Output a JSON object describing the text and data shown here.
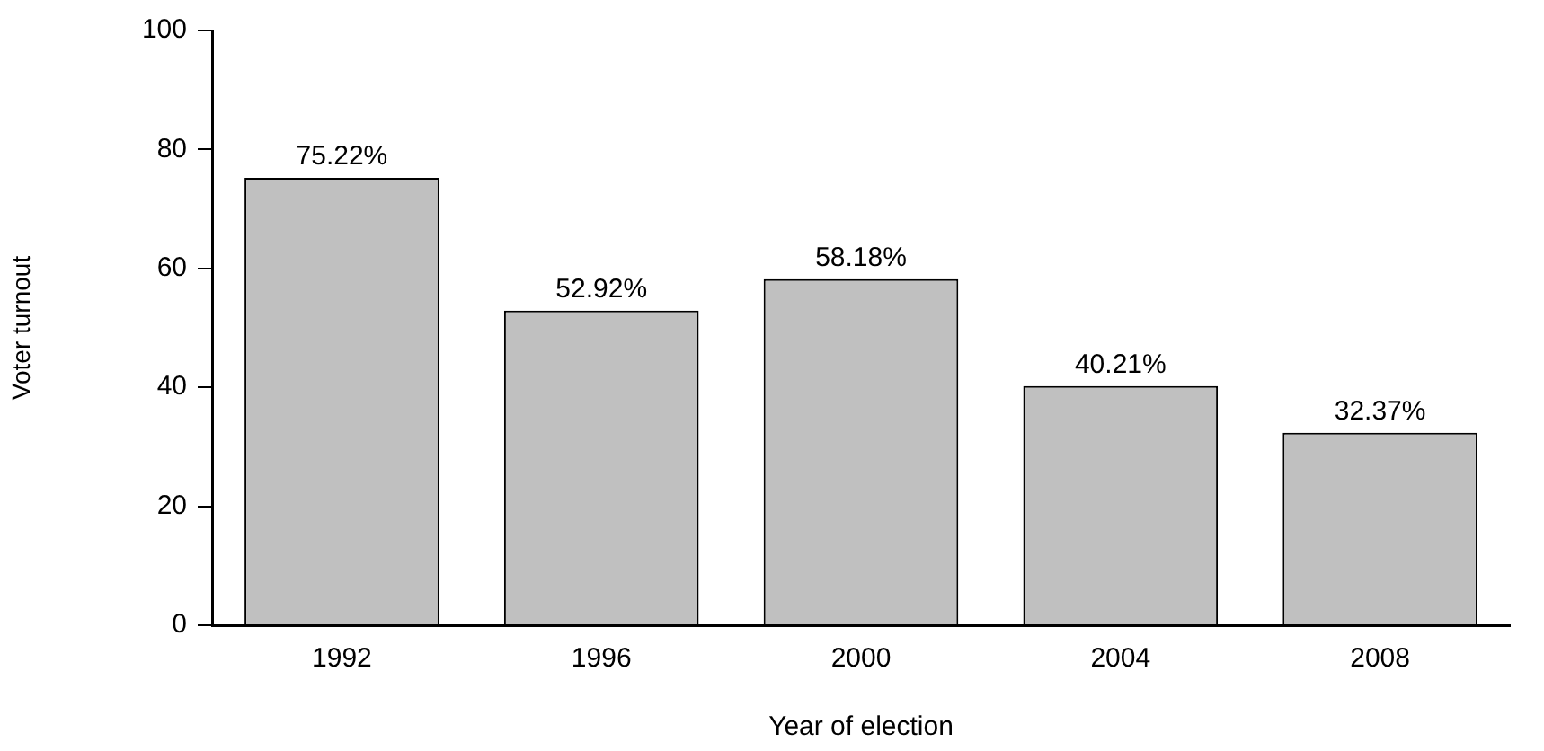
{
  "chart_data": {
    "type": "bar",
    "xlabel": "Year of election",
    "ylabel": "Voter turnout",
    "categories": [
      "1992",
      "1996",
      "2000",
      "2004",
      "2008"
    ],
    "values": [
      75.22,
      52.92,
      58.18,
      40.21,
      32.37
    ],
    "value_labels": [
      "75.22%",
      "52.92%",
      "58.18%",
      "40.21%",
      "32.37%"
    ],
    "color": "#c0c0c0",
    "ylim": [
      0,
      100
    ],
    "yticks": [
      0,
      20,
      40,
      60,
      80,
      100
    ],
    "grid": false,
    "legend": false
  }
}
